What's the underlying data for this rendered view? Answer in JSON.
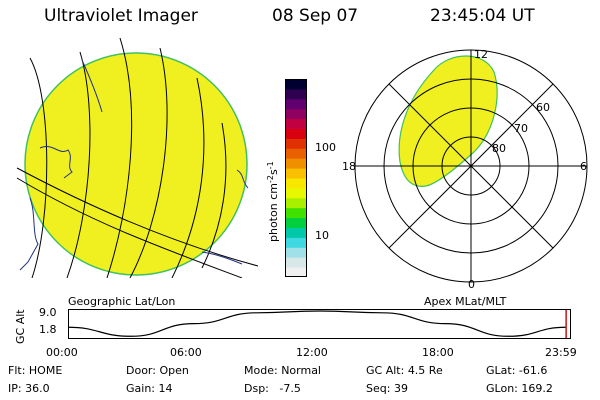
{
  "header": {
    "title": "Ultraviolet Imager",
    "date": "08 Sep 07",
    "time": "23:45:04 UT"
  },
  "colorbar": {
    "unit_label": "photon cm",
    "unit_exp_1": "-2",
    "unit_mid": "s",
    "unit_exp_2": "-1",
    "ticks": [
      "100",
      "10"
    ],
    "colors": [
      "#f0f0f0",
      "#d8e8e8",
      "#a0e0e8",
      "#40d8e0",
      "#00c8a8",
      "#00d040",
      "#40e000",
      "#a8f000",
      "#e8f800",
      "#f8e800",
      "#f8c000",
      "#f09000",
      "#e86000",
      "#e03000",
      "#d80010",
      "#c00040",
      "#900060",
      "#600070",
      "#300050",
      "#000030"
    ]
  },
  "geo_panel": {
    "label": "Geographic Lat/Lon",
    "fill_color": "#f0f020",
    "edge_color": "#40c060"
  },
  "polar_panel": {
    "label": "Apex MLat/MLT",
    "mlt_labels": {
      "top": "12",
      "left": "18",
      "right": "6",
      "bottom": "0"
    },
    "lat_labels": [
      "60",
      "70",
      "80"
    ]
  },
  "altitude": {
    "axis_title": "GC Alt",
    "y_max": "9.0",
    "y_min": "1.8",
    "time_ticks": [
      "00:00",
      "06:00",
      "12:00",
      "18:00",
      "23:59"
    ]
  },
  "chart_data": {
    "type": "line",
    "title": "",
    "xlabel": "",
    "ylabel": "GC Alt",
    "x": [
      "00:00",
      "03:00",
      "06:00",
      "09:00",
      "12:00",
      "15:00",
      "18:00",
      "21:00",
      "23:45"
    ],
    "series": [
      {
        "values": [
          4.5,
          2.0,
          5.5,
          8.5,
          9.0,
          8.5,
          5.5,
          2.0,
          4.5
        ]
      }
    ],
    "ylim": [
      1.8,
      9.0
    ],
    "current_time": "23:45:04"
  },
  "status": {
    "row1": [
      {
        "key": "Flt:",
        "value": "HOME"
      },
      {
        "key": "Door:",
        "value": "Open"
      },
      {
        "key": "Mode:",
        "value": "Normal"
      },
      {
        "key": "GC Alt:",
        "value": "4.5 Re"
      },
      {
        "key": "GLat:",
        "value": "-61.6"
      }
    ],
    "row2": [
      {
        "key": "IP:",
        "value": "36.0"
      },
      {
        "key": "Gain:",
        "value": "14"
      },
      {
        "key": "Dsp:",
        "value": "-7.5"
      },
      {
        "key": "Seq:",
        "value": "39"
      },
      {
        "key": "GLon:",
        "value": "169.2"
      }
    ]
  }
}
